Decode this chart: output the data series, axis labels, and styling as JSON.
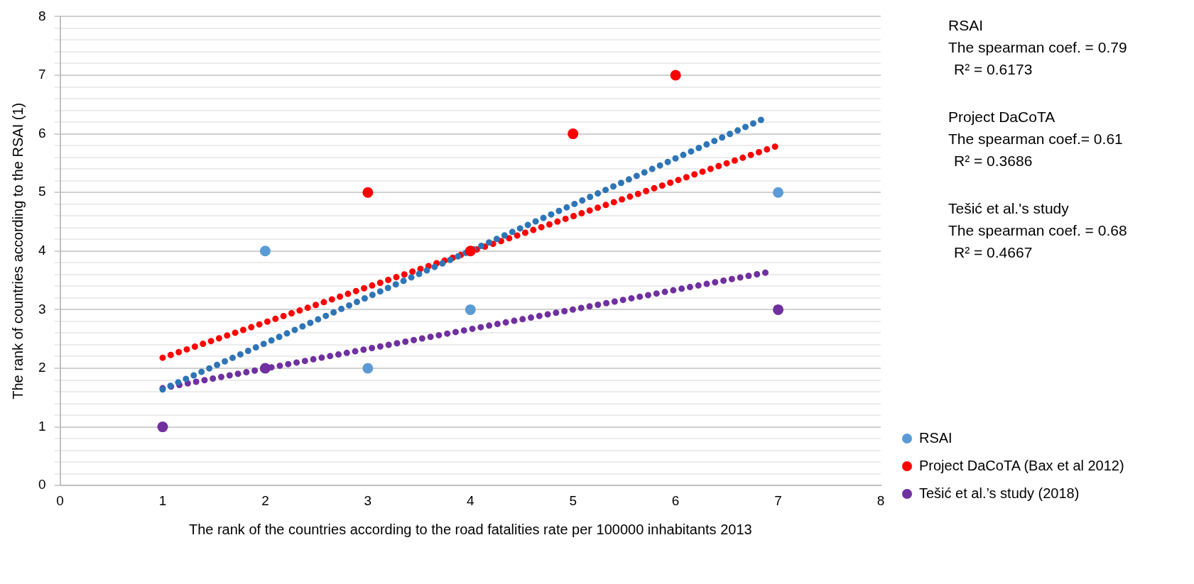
{
  "chart_data": {
    "type": "scatter",
    "xlabel": "The rank of the countries according to the road fatalities rate per 100000 inhabitants 2013",
    "ylabel": "The rank of countries according to the RSAI (1)",
    "xlim": [
      0,
      8
    ],
    "xticks": [
      0,
      1,
      2,
      3,
      4,
      5,
      6,
      7,
      8
    ],
    "ylim": [
      0,
      8
    ],
    "yticks": [
      0,
      {
        "value": 0.2,
        "label": null
      },
      {
        "value": 0.4,
        "label": null
      },
      {
        "value": 0.6,
        "label": null
      },
      {
        "value": 0.8,
        "label": null
      },
      1,
      {
        "value": 1.2,
        "label": null
      },
      {
        "value": 1.4,
        "label": null
      },
      {
        "value": 1.6,
        "label": null
      },
      {
        "value": 1.8,
        "label": null
      },
      2,
      {
        "value": 2.2,
        "label": null
      },
      {
        "value": 2.4,
        "label": null
      },
      {
        "value": 2.6,
        "label": null
      },
      {
        "value": 2.8,
        "label": null
      },
      3,
      {
        "value": 3.2,
        "label": null
      },
      {
        "value": 3.4,
        "label": null
      },
      {
        "value": 3.6,
        "label": null
      },
      {
        "value": 3.8,
        "label": null
      },
      4,
      {
        "value": 4.2,
        "label": null
      },
      {
        "value": 4.4,
        "label": null
      },
      {
        "value": 4.6,
        "label": null
      },
      {
        "value": 4.8,
        "label": null
      },
      5,
      {
        "value": 5.2,
        "label": null
      },
      {
        "value": 5.4,
        "label": null
      },
      {
        "value": 5.6,
        "label": null
      },
      {
        "value": 5.8,
        "label": null
      },
      6,
      {
        "value": 6.2,
        "label": null
      },
      {
        "value": 6.4,
        "label": null
      },
      {
        "value": 6.6,
        "label": null
      },
      {
        "value": 6.8,
        "label": null
      },
      7,
      {
        "value": 7.2,
        "label": null
      },
      {
        "value": 7.4,
        "label": null
      },
      {
        "value": 7.6,
        "label": null
      },
      {
        "value": 7.8,
        "label": null
      },
      8
    ],
    "grid": "y",
    "legend": "right",
    "marker": "circle",
    "series": [
      {
        "type": "line",
        "marker": "none",
        "line_style": "dotted",
        "color": "#2e75b6",
        "x": [
          1,
          6.9
        ],
        "values": [
          1.64,
          6.29
        ]
      },
      {
        "type": "line",
        "marker": "none",
        "line_style": "dotted",
        "color": "#ff0000",
        "x": [
          1,
          7
        ],
        "values": [
          2.18,
          5.8
        ]
      },
      {
        "type": "line",
        "marker": "none",
        "line_style": "dotted",
        "color": "#7030a0",
        "x": [
          1,
          6.9
        ],
        "values": [
          1.66,
          3.64
        ]
      },
      {
        "name": "RSAI",
        "color": "#5b9bd5",
        "x": [
          2,
          3,
          4,
          7
        ],
        "values": [
          4,
          2,
          3,
          5
        ]
      },
      {
        "name": "Project DaCoTA (Bax et al 2012)",
        "color": "#ff0000",
        "x": [
          3,
          4,
          5,
          6
        ],
        "values": [
          5,
          4,
          6,
          7
        ]
      },
      {
        "name": "Tešić et al.’s study (2018)",
        "color": "#7030a0",
        "x": [
          1,
          2,
          7
        ],
        "values": [
          1,
          2,
          3
        ]
      }
    ],
    "annotations": [
      "RSAI",
      "The spearman coef. = 0.79",
      "R² = 0.6173",
      "Project DaCoTA",
      "The spearman coef.= 0.61",
      "R² = 0.3686",
      "Tešić et al.'s study",
      "The spearman coef. = 0.68",
      "R² = 0.4667"
    ]
  }
}
